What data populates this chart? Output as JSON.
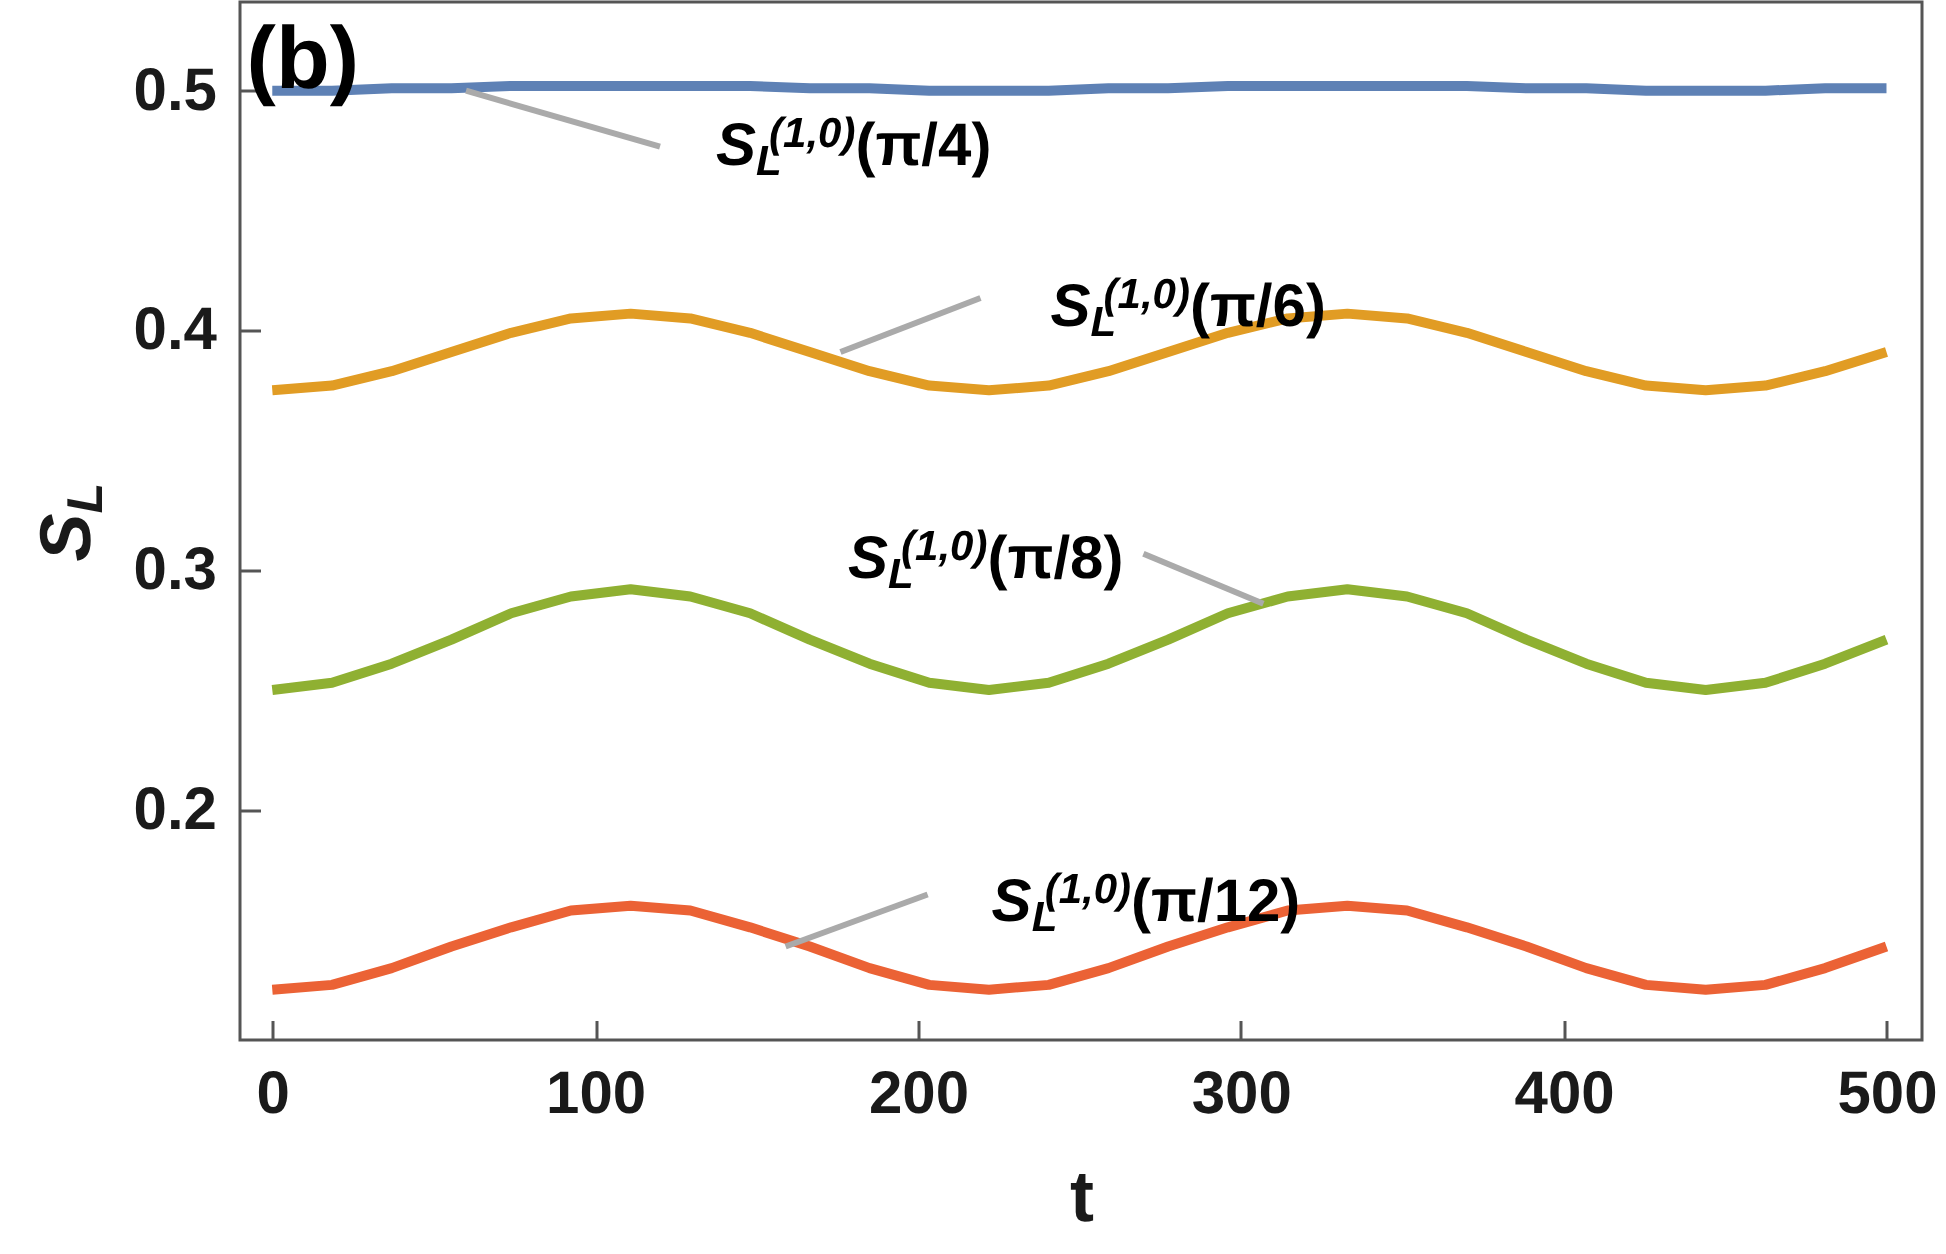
{
  "chart_data": {
    "type": "line",
    "title": "(b)",
    "xlabel": "t",
    "ylabel": "S$_{L}$",
    "x": [
      0,
      18.5,
      37,
      55.5,
      74,
      92.5,
      111,
      129.5,
      148,
      166.5,
      185,
      203.5,
      222,
      240.5,
      259,
      277.5,
      296,
      314.5,
      333,
      351.5,
      370,
      388.5,
      407,
      425.5,
      444,
      462.5,
      481,
      500
    ],
    "series": [
      {
        "color": "#5e81b5",
        "values": [
          0.5,
          0.5,
          0.501,
          0.501,
          0.502,
          0.502,
          0.502,
          0.502,
          0.502,
          0.501,
          0.501,
          0.5,
          0.5,
          0.5,
          0.501,
          0.501,
          0.502,
          0.502,
          0.502,
          0.502,
          0.502,
          0.501,
          0.501,
          0.5,
          0.5,
          0.5,
          0.501,
          0.501
        ]
      },
      {
        "color": "#e19c24",
        "values": [
          0.375,
          0.377,
          0.383,
          0.391,
          0.399,
          0.405,
          0.407,
          0.405,
          0.399,
          0.391,
          0.383,
          0.377,
          0.375,
          0.377,
          0.383,
          0.391,
          0.399,
          0.405,
          0.407,
          0.405,
          0.399,
          0.391,
          0.383,
          0.377,
          0.375,
          0.377,
          0.383,
          0.391
        ]
      },
      {
        "color": "#8fb032",
        "values": [
          0.25,
          0.253,
          0.261,
          0.271,
          0.282,
          0.289,
          0.292,
          0.289,
          0.282,
          0.271,
          0.261,
          0.253,
          0.25,
          0.253,
          0.261,
          0.271,
          0.282,
          0.289,
          0.292,
          0.289,
          0.282,
          0.271,
          0.261,
          0.253,
          0.25,
          0.253,
          0.261,
          0.271
        ]
      },
      {
        "color": "#eb6235",
        "values": [
          0.125,
          0.127,
          0.134,
          0.143,
          0.151,
          0.158,
          0.16,
          0.158,
          0.151,
          0.143,
          0.134,
          0.127,
          0.125,
          0.127,
          0.134,
          0.143,
          0.151,
          0.158,
          0.16,
          0.158,
          0.151,
          0.143,
          0.134,
          0.127,
          0.125,
          0.127,
          0.134,
          0.143
        ]
      }
    ],
    "annotations": [
      {
        "text": "S$_{L}$$^{(1,0)}$(π/4)",
        "x": 60,
        "y": 0.5
      },
      {
        "text": "S$_{L}$$^{(1,0)}$(π/6)",
        "x": 176,
        "y": 0.391
      },
      {
        "text": "S$_{L}$$^{(1,0)}$(π/8)",
        "x": 307,
        "y": 0.286
      },
      {
        "text": "S$_{L}$$^{(1,0)}$(π/12)",
        "x": 159,
        "y": 0.143
      }
    ],
    "xlim": [
      -10,
      511
    ],
    "ylim": [
      0.104,
      0.537
    ],
    "xticks": [
      0,
      100,
      200,
      300,
      400,
      500
    ],
    "yticks": [
      0.2,
      0.3,
      0.4,
      0.5
    ],
    "legend": false,
    "grid": false,
    "line_style": "solid",
    "marker": "none"
  }
}
